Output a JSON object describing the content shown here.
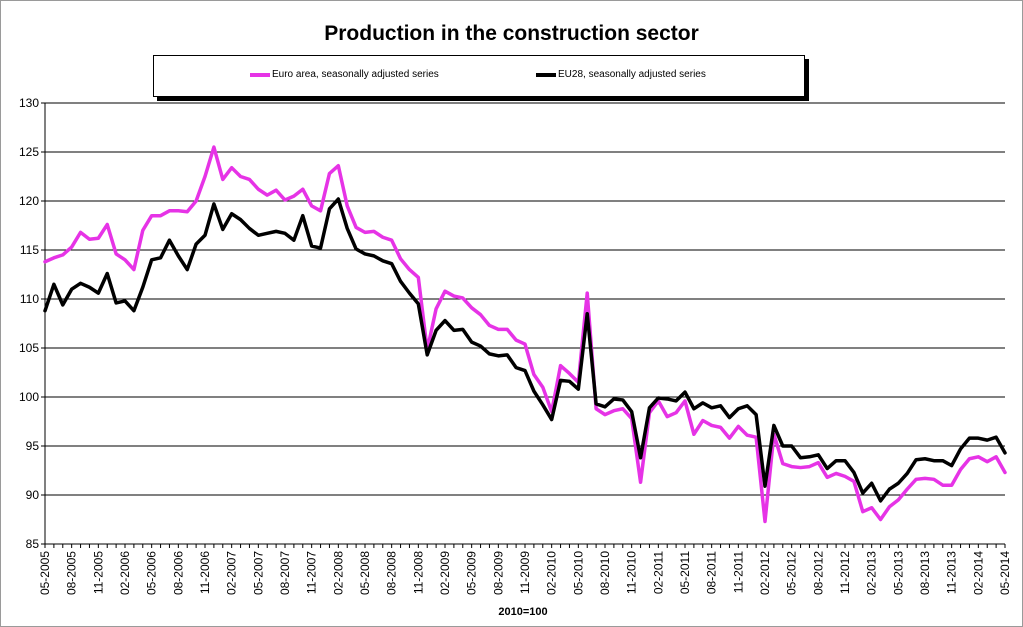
{
  "chart_data": {
    "type": "line",
    "title": "Production in the construction sector",
    "xlabel": "2010=100",
    "ylabel": "",
    "ylim": [
      85,
      130
    ],
    "yticks": [
      85,
      90,
      95,
      100,
      105,
      110,
      115,
      120,
      125,
      130
    ],
    "grid": "horizontal",
    "legend": "top",
    "x_tick_labels": [
      "05-2005",
      "08-2005",
      "11-2005",
      "02-2006",
      "05-2006",
      "08-2006",
      "11-2006",
      "02-2007",
      "05-2007",
      "08-2007",
      "11-2007",
      "02-2008",
      "05-2008",
      "08-2008",
      "11-2008",
      "02-2009",
      "05-2009",
      "08-2009",
      "11-2009",
      "02-2010",
      "05-2010",
      "08-2010",
      "11-2010",
      "02-2011",
      "05-2011",
      "08-2011",
      "11-2011",
      "02-2012",
      "05-2012",
      "08-2012",
      "11-2012",
      "02-2013",
      "05-2013",
      "08-2013",
      "11-2013",
      "02-2014",
      "05-2014"
    ],
    "series": [
      {
        "name": "Euro area, seasonally adjusted series",
        "color": "#e633e6",
        "values": [
          113.8,
          114.2,
          114.5,
          115.3,
          116.8,
          116.1,
          116.2,
          117.6,
          114.6,
          114.0,
          113.0,
          117.0,
          118.5,
          118.5,
          119.0,
          119.0,
          118.9,
          120.0,
          122.5,
          125.5,
          122.2,
          123.4,
          122.5,
          122.2,
          121.2,
          120.6,
          121.1,
          120.1,
          120.5,
          121.2,
          119.5,
          119.0,
          122.8,
          123.6,
          119.5,
          117.3,
          116.8,
          116.9,
          116.3,
          116.0,
          114.1,
          113.0,
          112.2,
          104.8,
          109.0,
          110.8,
          110.3,
          110.1,
          109.1,
          108.4,
          107.3,
          106.9,
          106.9,
          105.8,
          105.4,
          102.3,
          101.0,
          98.5,
          103.2,
          102.4,
          101.5,
          110.6,
          98.8,
          98.2,
          98.6,
          98.8,
          97.8,
          91.3,
          98.4,
          99.6,
          98.0,
          98.4,
          99.6,
          96.2,
          97.6,
          97.1,
          96.9,
          95.8,
          97.0,
          96.1,
          95.9,
          87.3,
          96.2,
          93.2,
          92.9,
          92.8,
          92.9,
          93.3,
          91.8,
          92.2,
          91.9,
          91.4,
          88.3,
          88.7,
          87.5,
          88.8,
          89.5,
          90.6,
          91.6,
          91.7,
          91.6,
          91.0,
          91.0,
          92.6,
          93.7,
          93.9,
          93.4,
          93.9,
          92.3
        ]
      },
      {
        "name": "EU28, seasonally adjusted series",
        "color": "#000000",
        "values": [
          108.8,
          111.5,
          109.4,
          111.0,
          111.6,
          111.2,
          110.6,
          112.6,
          109.6,
          109.8,
          108.8,
          111.2,
          114.0,
          114.2,
          116.0,
          114.4,
          113.0,
          115.6,
          116.5,
          119.7,
          117.1,
          118.7,
          118.1,
          117.2,
          116.5,
          116.7,
          116.9,
          116.7,
          116.0,
          118.5,
          115.4,
          115.2,
          119.2,
          120.2,
          117.2,
          115.1,
          114.6,
          114.4,
          113.9,
          113.6,
          111.8,
          110.6,
          109.5,
          104.3,
          106.8,
          107.8,
          106.8,
          106.9,
          105.6,
          105.2,
          104.4,
          104.2,
          104.3,
          103.0,
          102.7,
          100.6,
          99.2,
          97.7,
          101.7,
          101.6,
          100.8,
          108.5,
          99.3,
          99.0,
          99.8,
          99.7,
          98.5,
          93.8,
          98.9,
          99.9,
          99.8,
          99.6,
          100.5,
          98.8,
          99.4,
          98.9,
          99.1,
          97.9,
          98.8,
          99.1,
          98.2,
          90.9,
          97.1,
          95.0,
          95.0,
          93.8,
          93.9,
          94.1,
          92.7,
          93.5,
          93.5,
          92.3,
          90.2,
          91.2,
          89.4,
          90.6,
          91.2,
          92.2,
          93.6,
          93.7,
          93.5,
          93.5,
          93.0,
          94.7,
          95.8,
          95.8,
          95.6,
          95.9,
          94.3
        ]
      }
    ]
  }
}
